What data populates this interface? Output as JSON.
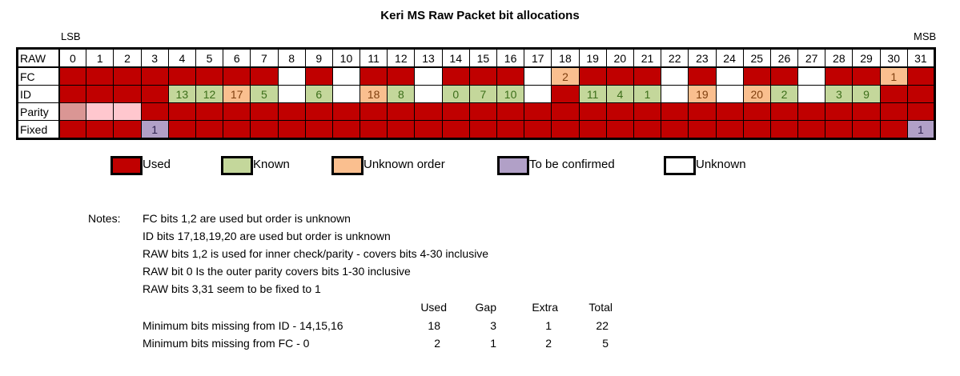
{
  "title": "Keri MS Raw Packet bit allocations",
  "lsb_label": "LSB",
  "msb_label": "MSB",
  "colors": {
    "used": "#c00000",
    "known": "#c4d79b",
    "unknown_order": "#fabf8f",
    "to_be_confirmed": "#b1a0c7",
    "unknown": "#ffffff",
    "parity_light": "#da9694",
    "parity_pale": "#ffc7ce"
  },
  "table": {
    "header": {
      "label": "RAW",
      "bits": [
        "0",
        "1",
        "2",
        "3",
        "4",
        "5",
        "6",
        "7",
        "8",
        "9",
        "10",
        "11",
        "12",
        "13",
        "14",
        "15",
        "16",
        "17",
        "18",
        "19",
        "20",
        "21",
        "22",
        "23",
        "24",
        "25",
        "26",
        "27",
        "28",
        "29",
        "30",
        "31"
      ]
    },
    "rows": [
      {
        "label": "FC",
        "status": [
          "u",
          "u",
          "u",
          "u",
          "u",
          "u",
          "u",
          "u",
          "w",
          "u",
          "w",
          "u",
          "u",
          "w",
          "u",
          "u",
          "u",
          "w",
          "o",
          "u",
          "u",
          "u",
          "w",
          "u",
          "w",
          "u",
          "u",
          "w",
          "u",
          "u",
          "o",
          "u"
        ],
        "values": [
          "",
          "",
          "",
          "",
          "",
          "",
          "",
          "",
          "",
          "",
          "",
          "",
          "",
          "",
          "",
          "",
          "",
          "",
          "2",
          "",
          "",
          "",
          "",
          "",
          "",
          "",
          "",
          "",
          "",
          "",
          "1",
          ""
        ]
      },
      {
        "label": "ID",
        "status": [
          "u",
          "u",
          "u",
          "u",
          "k",
          "k",
          "o",
          "k",
          "w",
          "k",
          "w",
          "o",
          "k",
          "w",
          "k",
          "k",
          "k",
          "w",
          "u",
          "k",
          "k",
          "k",
          "w",
          "o",
          "w",
          "o",
          "k",
          "w",
          "k",
          "k",
          "u",
          "u"
        ],
        "values": [
          "",
          "",
          "",
          "",
          "13",
          "12",
          "17",
          "5",
          "",
          "6",
          "",
          "18",
          "8",
          "",
          "0",
          "7",
          "10",
          "",
          "",
          "11",
          "4",
          "1",
          "",
          "19",
          "",
          "20",
          "2",
          "",
          "3",
          "9",
          "",
          ""
        ]
      },
      {
        "label": "Parity",
        "status": [
          "p1",
          "p2",
          "p2",
          "u",
          "u",
          "u",
          "u",
          "u",
          "u",
          "u",
          "u",
          "u",
          "u",
          "u",
          "u",
          "u",
          "u",
          "u",
          "u",
          "u",
          "u",
          "u",
          "u",
          "u",
          "u",
          "u",
          "u",
          "u",
          "u",
          "u",
          "u",
          "u"
        ],
        "values": [
          "",
          "",
          "",
          "",
          "",
          "",
          "",
          "",
          "",
          "",
          "",
          "",
          "",
          "",
          "",
          "",
          "",
          "",
          "",
          "",
          "",
          "",
          "",
          "",
          "",
          "",
          "",
          "",
          "",
          "",
          "",
          ""
        ]
      },
      {
        "label": "Fixed",
        "status": [
          "u",
          "u",
          "u",
          "c",
          "u",
          "u",
          "u",
          "u",
          "u",
          "u",
          "u",
          "u",
          "u",
          "u",
          "u",
          "u",
          "u",
          "u",
          "u",
          "u",
          "u",
          "u",
          "u",
          "u",
          "u",
          "u",
          "u",
          "u",
          "u",
          "u",
          "u",
          "c"
        ],
        "values": [
          "",
          "",
          "",
          "1",
          "",
          "",
          "",
          "",
          "",
          "",
          "",
          "",
          "",
          "",
          "",
          "",
          "",
          "",
          "",
          "",
          "",
          "",
          "",
          "",
          "",
          "",
          "",
          "",
          "",
          "",
          "",
          "1"
        ]
      }
    ]
  },
  "legend": {
    "used": "Used",
    "known": "Known",
    "unknown_order": "Unknown order",
    "to_be_confirmed": "To be confirmed",
    "unknown": "Unknown"
  },
  "notes": {
    "label": "Notes:",
    "lines": [
      "FC bits 1,2 are used but order is unknown",
      "ID bits 17,18,19,20 are used but order is unknown",
      "RAW bits 1,2 is used for inner check/parity - covers bits 4-30 inclusive",
      "RAW bit 0 Is the outer parity covers bits 1-30 inclusive",
      "RAW bits 3,31 seem to be fixed to 1"
    ]
  },
  "summary": {
    "headers": {
      "used": "Used",
      "gap": "Gap",
      "extra": "Extra",
      "total": "Total"
    },
    "rows": [
      {
        "label": "Minimum bits missing from ID - 14,15,16",
        "used": "18",
        "gap": "3",
        "extra": "1",
        "total": "22"
      },
      {
        "label": "Minimum bits missing from FC - 0",
        "used": "2",
        "gap": "1",
        "extra": "2",
        "total": "5"
      }
    ]
  }
}
